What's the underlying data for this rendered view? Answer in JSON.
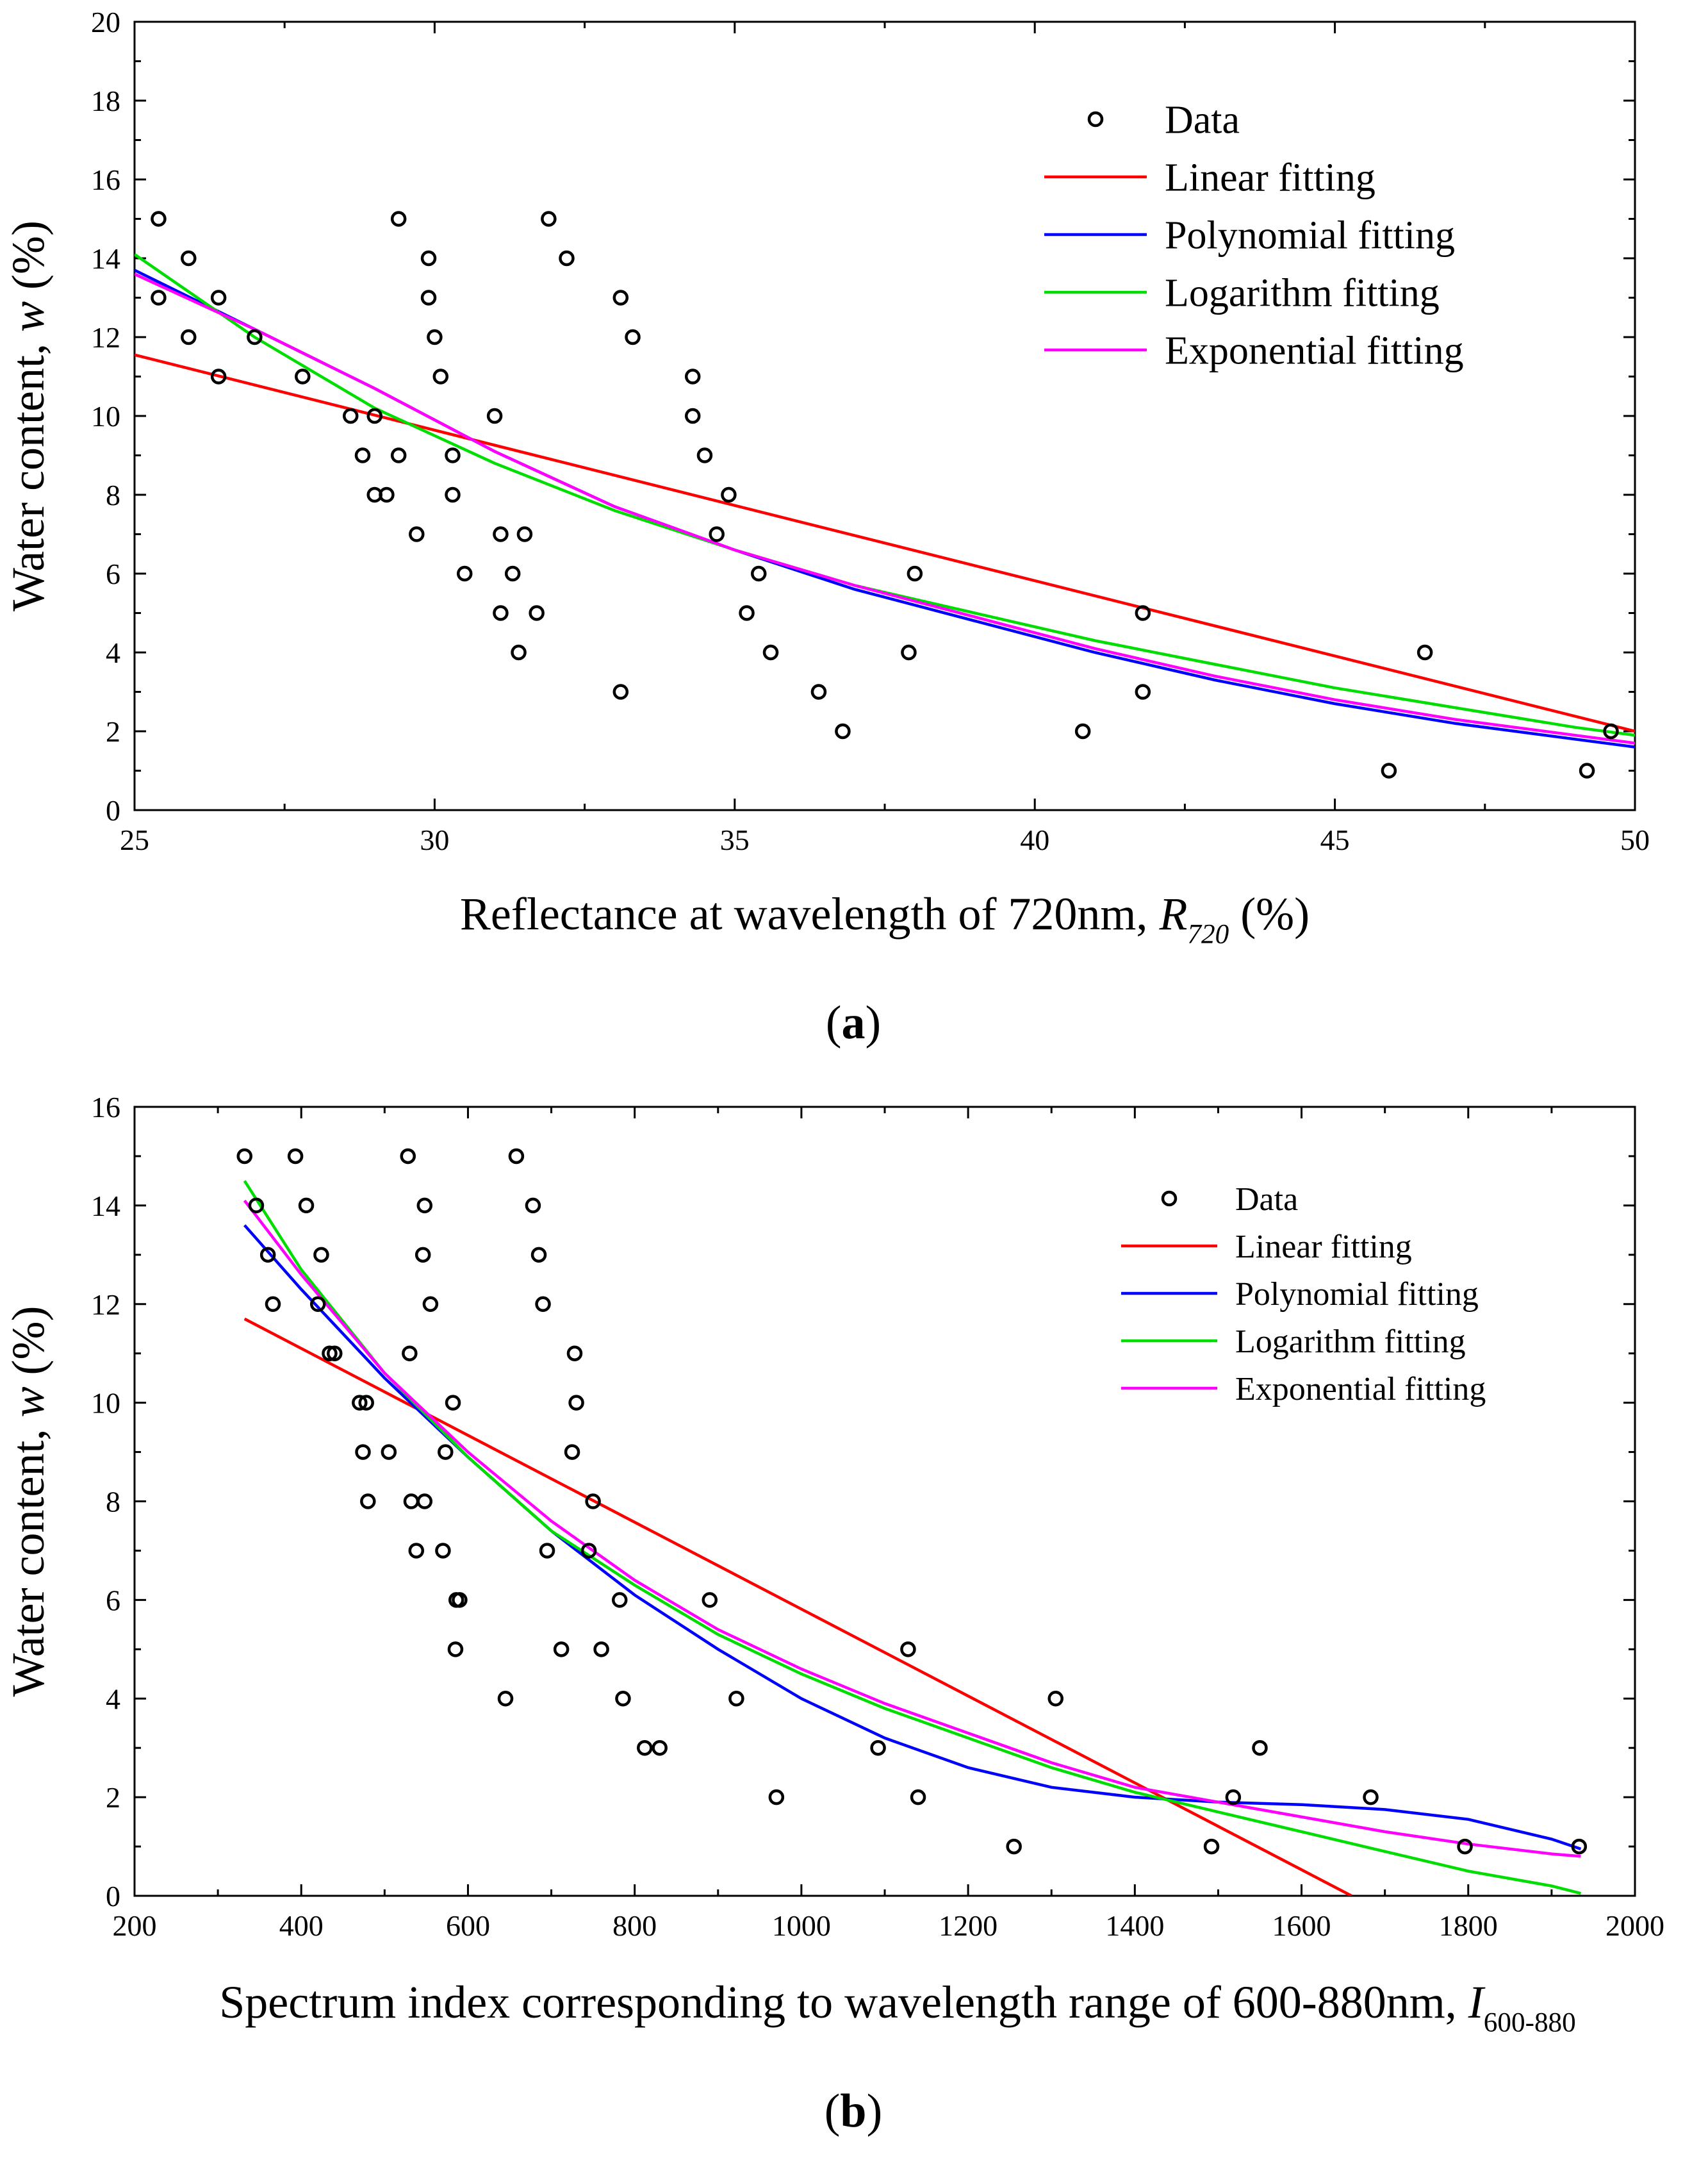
{
  "chart_data": [
    {
      "type": "scatter",
      "panel_label": "(a)",
      "panel_label_letter": "a",
      "xlabel": "Reflectance at wavelength of 720nm, ",
      "xlabel_symbol": "R",
      "xlabel_subscript": "720",
      "xlabel_unit": " (%)",
      "ylabel": "Water content, ",
      "ylabel_symbol": "w",
      "ylabel_unit": " (%)",
      "xlim": [
        25,
        50
      ],
      "ylim": [
        0,
        20
      ],
      "xticks": [
        25,
        30,
        35,
        40,
        45,
        50
      ],
      "yticks": [
        0,
        2,
        4,
        6,
        8,
        10,
        12,
        14,
        16,
        18,
        20
      ],
      "legend_position": "top-right",
      "legend": [
        "Data",
        "Linear fitting",
        "Polynomial fitting",
        "Logarithm fitting",
        "Exponential fitting"
      ],
      "colors": {
        "data": "#000000",
        "linear": "#ff0000",
        "polynomial": "#0000ff",
        "logarithm": "#00dd00",
        "exponential": "#ff00ff"
      },
      "points": [
        [
          25.4,
          15
        ],
        [
          25.4,
          13
        ],
        [
          25.9,
          14
        ],
        [
          25.9,
          12
        ],
        [
          26.4,
          13
        ],
        [
          26.4,
          11
        ],
        [
          27.0,
          12
        ],
        [
          27.8,
          11
        ],
        [
          28.6,
          10
        ],
        [
          28.8,
          9
        ],
        [
          29.0,
          8
        ],
        [
          29.0,
          10
        ],
        [
          29.2,
          8
        ],
        [
          29.4,
          9
        ],
        [
          29.4,
          15
        ],
        [
          29.7,
          7
        ],
        [
          29.9,
          14
        ],
        [
          29.9,
          13
        ],
        [
          30.0,
          12
        ],
        [
          30.1,
          11
        ],
        [
          30.3,
          9
        ],
        [
          30.3,
          8
        ],
        [
          30.5,
          6
        ],
        [
          31.0,
          10
        ],
        [
          31.1,
          7
        ],
        [
          31.1,
          5
        ],
        [
          31.3,
          6
        ],
        [
          31.4,
          4
        ],
        [
          31.5,
          7
        ],
        [
          31.7,
          5
        ],
        [
          31.9,
          15
        ],
        [
          32.2,
          14
        ],
        [
          33.1,
          13
        ],
        [
          33.1,
          3
        ],
        [
          33.3,
          12
        ],
        [
          34.3,
          11
        ],
        [
          34.3,
          10
        ],
        [
          34.5,
          9
        ],
        [
          34.7,
          7
        ],
        [
          34.9,
          8
        ],
        [
          35.2,
          5
        ],
        [
          35.4,
          6
        ],
        [
          35.6,
          4
        ],
        [
          36.4,
          3
        ],
        [
          36.8,
          2
        ],
        [
          37.9,
          4
        ],
        [
          38.0,
          6
        ],
        [
          40.8,
          2
        ],
        [
          41.8,
          5
        ],
        [
          41.8,
          3
        ],
        [
          45.9,
          1
        ],
        [
          46.5,
          4
        ],
        [
          49.2,
          1
        ],
        [
          49.6,
          2
        ]
      ],
      "fits": {
        "linear": {
          "x": [
            25,
            50
          ],
          "y": [
            11.55,
            2.0
          ]
        },
        "polynomial": {
          "x": [
            25,
            27,
            29,
            31,
            33,
            35,
            37,
            39,
            41,
            43,
            45,
            47,
            49,
            50
          ],
          "y": [
            13.7,
            12.2,
            10.7,
            9.1,
            7.7,
            6.6,
            5.6,
            4.8,
            4.0,
            3.3,
            2.7,
            2.2,
            1.8,
            1.6
          ]
        },
        "logarithm": {
          "x": [
            25,
            27,
            29,
            31,
            33,
            35,
            37,
            39,
            41,
            43,
            45,
            47,
            49,
            50
          ],
          "y": [
            14.1,
            12.0,
            10.2,
            8.8,
            7.6,
            6.6,
            5.7,
            5.0,
            4.3,
            3.7,
            3.1,
            2.6,
            2.1,
            1.9
          ]
        },
        "exponential": {
          "x": [
            25,
            27,
            29,
            31,
            33,
            35,
            37,
            39,
            41,
            43,
            45,
            47,
            49,
            50
          ],
          "y": [
            13.6,
            12.2,
            10.7,
            9.1,
            7.7,
            6.6,
            5.7,
            4.9,
            4.1,
            3.4,
            2.8,
            2.3,
            1.9,
            1.7
          ]
        }
      }
    },
    {
      "type": "scatter",
      "panel_label": "(b)",
      "panel_label_letter": "b",
      "xlabel": "Spectrum index corresponding to wavelength range of 600-880nm, ",
      "xlabel_symbol": "I",
      "xlabel_subscript": "600-880",
      "xlabel_unit": "",
      "ylabel": "Water content, ",
      "ylabel_symbol": "w",
      "ylabel_unit": " (%)",
      "xlim": [
        200,
        2000
      ],
      "ylim": [
        0,
        16
      ],
      "xticks": [
        200,
        400,
        600,
        800,
        1000,
        1200,
        1400,
        1600,
        1800,
        2000
      ],
      "yticks": [
        0,
        2,
        4,
        6,
        8,
        10,
        12,
        14,
        16
      ],
      "legend_position": "top-right",
      "legend": [
        "Data",
        "Linear fitting",
        "Polynomial fitting",
        "Logarithm fitting",
        "Exponential fitting"
      ],
      "colors": {
        "data": "#000000",
        "linear": "#ff0000",
        "polynomial": "#0000ff",
        "logarithm": "#00dd00",
        "exponential": "#ff00ff"
      },
      "points": [
        [
          332,
          15
        ],
        [
          346,
          14
        ],
        [
          360,
          13
        ],
        [
          366,
          12
        ],
        [
          393,
          15
        ],
        [
          406,
          14
        ],
        [
          420,
          12
        ],
        [
          424,
          13
        ],
        [
          434,
          11
        ],
        [
          440,
          11
        ],
        [
          470,
          10
        ],
        [
          474,
          9
        ],
        [
          478,
          10
        ],
        [
          480,
          8
        ],
        [
          505,
          9
        ],
        [
          528,
          15
        ],
        [
          530,
          11
        ],
        [
          532,
          8
        ],
        [
          538,
          7
        ],
        [
          546,
          13
        ],
        [
          548,
          14
        ],
        [
          548,
          8
        ],
        [
          555,
          12
        ],
        [
          570,
          7
        ],
        [
          573,
          9
        ],
        [
          582,
          10
        ],
        [
          585,
          5
        ],
        [
          586,
          6
        ],
        [
          590,
          6
        ],
        [
          645,
          4
        ],
        [
          658,
          15
        ],
        [
          678,
          14
        ],
        [
          685,
          13
        ],
        [
          690,
          12
        ],
        [
          695,
          7
        ],
        [
          712,
          5
        ],
        [
          725,
          9
        ],
        [
          728,
          11
        ],
        [
          730,
          10
        ],
        [
          745,
          7
        ],
        [
          750,
          8
        ],
        [
          760,
          5
        ],
        [
          782,
          6
        ],
        [
          786,
          4
        ],
        [
          812,
          3
        ],
        [
          830,
          3
        ],
        [
          890,
          6
        ],
        [
          922,
          4
        ],
        [
          970,
          2
        ],
        [
          1092,
          3
        ],
        [
          1128,
          5
        ],
        [
          1140,
          2
        ],
        [
          1255,
          1
        ],
        [
          1305,
          4
        ],
        [
          1492,
          1
        ],
        [
          1518,
          2
        ],
        [
          1550,
          3
        ],
        [
          1683,
          2
        ],
        [
          1796,
          1
        ],
        [
          1933,
          1
        ]
      ],
      "fits": {
        "linear": {
          "x": [
            332,
            1660
          ],
          "y": [
            11.7,
            0.0
          ]
        },
        "polynomial": {
          "x": [
            332,
            400,
            500,
            600,
            700,
            800,
            900,
            1000,
            1100,
            1200,
            1300,
            1400,
            1500,
            1600,
            1700,
            1800,
            1900,
            1935
          ],
          "y": [
            13.6,
            12.3,
            10.5,
            8.9,
            7.4,
            6.1,
            5.0,
            4.0,
            3.2,
            2.6,
            2.2,
            2.0,
            1.9,
            1.85,
            1.75,
            1.55,
            1.15,
            0.95
          ]
        },
        "logarithm": {
          "x": [
            332,
            400,
            500,
            600,
            700,
            800,
            900,
            1000,
            1100,
            1200,
            1300,
            1400,
            1500,
            1600,
            1700,
            1800,
            1900,
            1935
          ],
          "y": [
            14.5,
            12.7,
            10.6,
            8.9,
            7.4,
            6.3,
            5.3,
            4.5,
            3.8,
            3.2,
            2.6,
            2.1,
            1.7,
            1.3,
            0.9,
            0.5,
            0.2,
            0.05
          ]
        },
        "exponential": {
          "x": [
            332,
            400,
            500,
            600,
            700,
            800,
            900,
            1000,
            1100,
            1200,
            1300,
            1400,
            1500,
            1600,
            1700,
            1800,
            1900,
            1935
          ],
          "y": [
            14.1,
            12.6,
            10.6,
            9.0,
            7.6,
            6.4,
            5.4,
            4.6,
            3.9,
            3.3,
            2.7,
            2.2,
            1.9,
            1.6,
            1.3,
            1.05,
            0.85,
            0.8
          ]
        }
      }
    }
  ]
}
